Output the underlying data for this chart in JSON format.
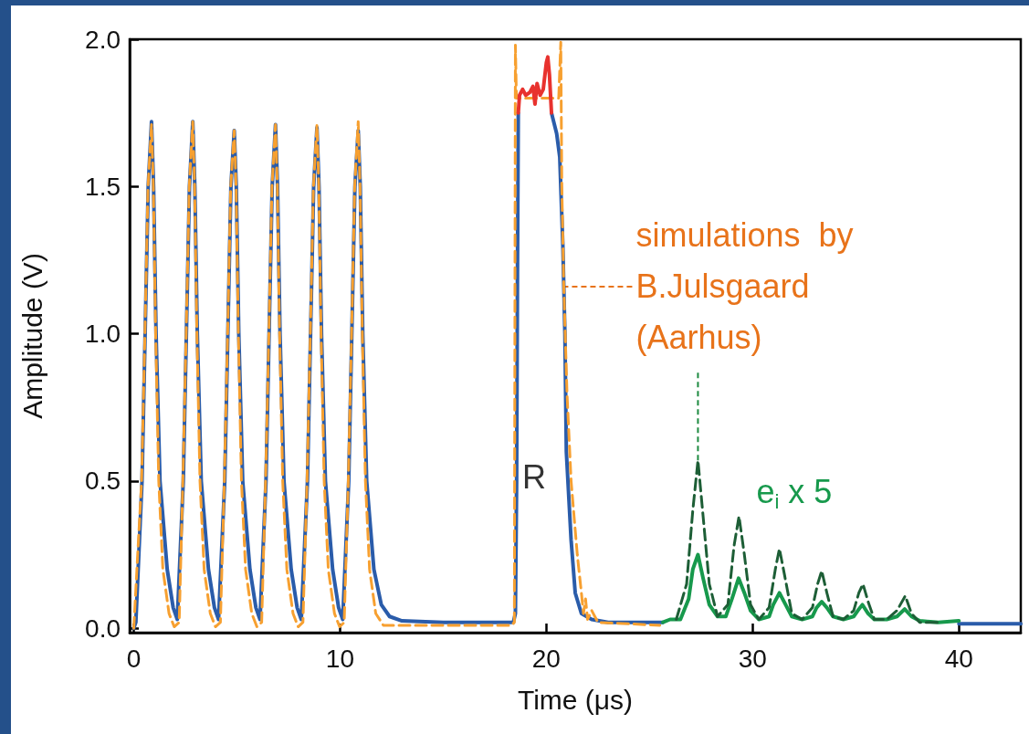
{
  "chart_data": {
    "type": "line",
    "xlabel": "Time (μs)",
    "ylabel": "Amplitude (V)",
    "xlim": [
      -0.2,
      43.0
    ],
    "ylim": [
      -0.015,
      2.0
    ],
    "xticks": [
      0,
      10,
      20,
      30,
      40
    ],
    "yticks": [
      {
        "value": 0,
        "label": "0.0"
      },
      {
        "value": 0.5,
        "label": "0.5"
      },
      {
        "value": 1,
        "label": "1.0"
      },
      {
        "value": 1.5,
        "label": "1.5"
      },
      {
        "value": 2,
        "label": "2.0"
      }
    ],
    "grid": false,
    "marker": "none",
    "annotations": [
      {
        "text": "simulations  by\nB.Julsgaard\n(Aarhus)",
        "x": 20.8,
        "y": 1.16
      },
      "R",
      {
        "text": "e$_{i}$ x 5",
        "x": 27.35,
        "y": 0.57
      }
    ],
    "series": [
      {
        "color": "#2a5caa",
        "line_style": "solid",
        "x": [
          0.0,
          0.1,
          0.4,
          0.55,
          0.7,
          0.86,
          0.96,
          1.08,
          1.27,
          1.62,
          1.91,
          2.11,
          2.4,
          2.55,
          2.7,
          2.86,
          2.96,
          3.08,
          3.27,
          3.62,
          3.91,
          4.11,
          4.41,
          4.56,
          4.71,
          4.87,
          4.97,
          5.09,
          5.28,
          5.63,
          5.92,
          6.12,
          6.41,
          6.56,
          6.71,
          6.87,
          6.97,
          7.09,
          7.28,
          7.63,
          7.92,
          8.12,
          8.42,
          8.57,
          8.72,
          8.88,
          8.98,
          9.1,
          9.29,
          9.64,
          9.93,
          10.13,
          10.42,
          10.57,
          10.72,
          10.88,
          10.98,
          11.1,
          11.29,
          11.64,
          12.0,
          12.4,
          13.0,
          15.0,
          18.4,
          18.5,
          18.56,
          18.6,
          18.64,
          19.5,
          20.25,
          20.5,
          20.65,
          20.8,
          20.9,
          20.97,
          21.2,
          21.4,
          21.7,
          22.2,
          23.0,
          25.65,
          32.0,
          40.0,
          43.0
        ],
        "values": [
          0.0,
          0.02,
          0.5,
          1.0,
          1.5,
          1.72,
          1.5,
          1.0,
          0.5,
          0.2,
          0.07,
          0.03,
          0.5,
          1.0,
          1.5,
          1.72,
          1.5,
          1.0,
          0.5,
          0.2,
          0.07,
          0.03,
          0.5,
          1.0,
          1.5,
          1.69,
          1.5,
          1.0,
          0.5,
          0.2,
          0.07,
          0.03,
          0.5,
          1.0,
          1.5,
          1.71,
          1.5,
          1.0,
          0.5,
          0.2,
          0.07,
          0.03,
          0.5,
          1.0,
          1.5,
          1.7,
          1.5,
          1.0,
          0.5,
          0.2,
          0.07,
          0.03,
          0.5,
          1.0,
          1.5,
          1.69,
          1.5,
          1.0,
          0.5,
          0.2,
          0.08,
          0.04,
          0.025,
          0.02,
          0.02,
          0.05,
          0.5,
          1.2,
          1.75,
          null,
          1.75,
          1.68,
          1.6,
          1.3,
          1.0,
          0.6,
          0.3,
          0.12,
          0.05,
          0.03,
          0.02,
          0.02,
          null,
          0.015,
          0.015
        ]
      },
      {
        "color": "#f7a030",
        "line_style": "dashed",
        "x": [
          0.0,
          0.38,
          0.54,
          0.69,
          0.86,
          0.95,
          1.06,
          1.21,
          1.41,
          1.71,
          1.96,
          2.2,
          2.38,
          2.54,
          2.69,
          2.86,
          2.95,
          3.06,
          3.21,
          3.41,
          3.71,
          3.96,
          4.2,
          4.39,
          4.55,
          4.7,
          4.87,
          4.96,
          5.07,
          5.22,
          5.42,
          5.72,
          5.97,
          6.2,
          6.39,
          6.55,
          6.7,
          6.87,
          6.96,
          7.07,
          7.22,
          7.42,
          7.72,
          7.97,
          8.2,
          8.4,
          8.56,
          8.71,
          8.88,
          8.97,
          9.08,
          9.23,
          9.43,
          9.73,
          9.98,
          10.2,
          10.4,
          10.56,
          10.71,
          10.88,
          10.97,
          11.08,
          11.23,
          11.43,
          11.73,
          12.1,
          14.0,
          18.3,
          18.45,
          18.5,
          18.55,
          20.6,
          20.7,
          20.75,
          20.85,
          21.0,
          21.2,
          21.5,
          21.7,
          21.8,
          21.9,
          22.0,
          22.2,
          22.5,
          25.5
        ],
        "values": [
          0.0,
          0.5,
          1.0,
          1.5,
          1.71,
          1.5,
          1.0,
          0.5,
          0.2,
          0.05,
          0.005,
          0.02,
          0.5,
          1.0,
          1.5,
          1.72,
          1.5,
          1.0,
          0.5,
          0.2,
          0.05,
          0.005,
          0.02,
          0.5,
          1.0,
          1.5,
          1.69,
          1.5,
          1.0,
          0.5,
          0.2,
          0.05,
          0.005,
          0.02,
          0.5,
          1.0,
          1.5,
          1.71,
          1.5,
          1.0,
          0.5,
          0.2,
          0.05,
          0.005,
          0.02,
          0.5,
          1.0,
          1.5,
          1.71,
          1.5,
          1.0,
          0.5,
          0.2,
          0.05,
          0.005,
          0.02,
          0.5,
          1.0,
          1.5,
          1.72,
          1.5,
          1.0,
          0.5,
          0.2,
          0.05,
          0.01,
          0.01,
          0.01,
          0.02,
          1.98,
          1.8,
          1.8,
          1.99,
          1.5,
          1.15,
          0.8,
          0.5,
          0.25,
          0.12,
          0.05,
          0.1,
          0.03,
          0.06,
          0.02,
          0.01
        ]
      },
      {
        "color": "#e8322e",
        "line_style": "solid",
        "x": [
          18.64,
          18.7,
          18.85,
          19.0,
          19.2,
          19.35,
          19.45,
          19.55,
          19.7,
          19.85,
          20.0,
          20.07,
          20.15,
          20.25
        ],
        "values": [
          1.75,
          1.81,
          1.83,
          1.81,
          1.82,
          1.84,
          1.78,
          1.85,
          1.81,
          1.83,
          1.92,
          1.94,
          1.88,
          1.75
        ]
      },
      {
        "color": "#17994c",
        "line_style": "solid",
        "x": [
          25.65,
          26.0,
          26.5,
          26.9,
          27.1,
          27.35,
          27.6,
          27.9,
          28.3,
          28.7,
          29.0,
          29.32,
          29.6,
          29.9,
          30.3,
          30.8,
          31.0,
          31.3,
          31.6,
          31.9,
          32.4,
          32.9,
          33.1,
          33.35,
          33.6,
          33.9,
          34.4,
          34.9,
          35.1,
          35.32,
          35.6,
          35.9,
          36.5,
          37.0,
          37.37,
          37.7,
          38.1,
          39.0,
          40.0
        ],
        "values": [
          0.02,
          0.03,
          0.03,
          0.1,
          0.2,
          0.25,
          0.17,
          0.08,
          0.04,
          0.04,
          0.1,
          0.17,
          0.12,
          0.06,
          0.03,
          0.04,
          0.08,
          0.12,
          0.08,
          0.04,
          0.03,
          0.04,
          0.07,
          0.09,
          0.07,
          0.04,
          0.03,
          0.04,
          0.06,
          0.08,
          0.05,
          0.03,
          0.03,
          0.04,
          0.065,
          0.04,
          0.025,
          0.02,
          0.025
        ]
      },
      {
        "color": "#1d5e36",
        "line_style": "dashed",
        "x": [
          26.3,
          26.8,
          27.1,
          27.35,
          27.6,
          27.9,
          28.3,
          28.8,
          29.1,
          29.34,
          29.6,
          29.9,
          30.3,
          30.8,
          31.1,
          31.3,
          31.55,
          31.9,
          32.4,
          32.9,
          33.15,
          33.35,
          33.6,
          33.9,
          34.4,
          34.9,
          35.15,
          35.35,
          35.6,
          35.9,
          36.5,
          37.0,
          37.4,
          37.7,
          38.1,
          39.0
        ],
        "values": [
          0.03,
          0.15,
          0.4,
          0.57,
          0.38,
          0.15,
          0.04,
          0.08,
          0.28,
          0.38,
          0.25,
          0.08,
          0.03,
          0.07,
          0.2,
          0.27,
          0.18,
          0.05,
          0.03,
          0.07,
          0.15,
          0.195,
          0.12,
          0.04,
          0.03,
          0.06,
          0.12,
          0.15,
          0.09,
          0.03,
          0.03,
          0.06,
          0.11,
          0.05,
          0.02,
          0.02
        ]
      }
    ]
  }
}
